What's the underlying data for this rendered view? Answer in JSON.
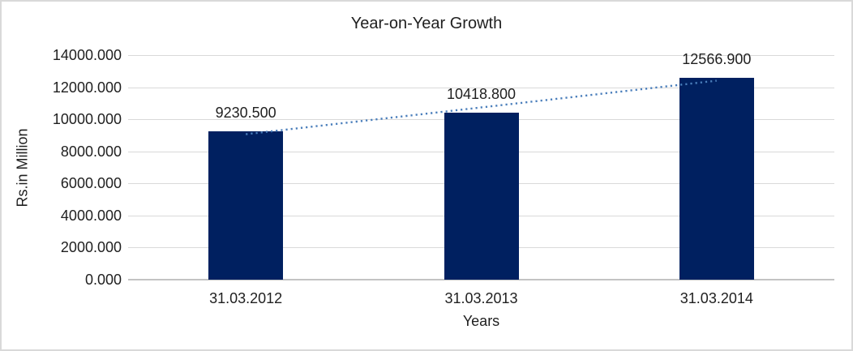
{
  "chart_data": {
    "type": "bar",
    "title": "Year-on-Year Growth",
    "categories": [
      "31.03.2012",
      "31.03.2013",
      "31.03.2014"
    ],
    "values": [
      9230.5,
      10418.8,
      12566.9
    ],
    "value_labels": [
      "9230.500",
      "10418.800",
      "12566.900"
    ],
    "xlabel": "Years",
    "ylabel": "Rs.in Million",
    "ylim": [
      0,
      14000
    ],
    "ytick_values": [
      0,
      2000,
      4000,
      6000,
      8000,
      10000,
      12000,
      14000
    ],
    "ytick_labels": [
      "0.000",
      "2000.000",
      "4000.000",
      "6000.000",
      "8000.000",
      "10000.000",
      "12000.000",
      "14000.000"
    ],
    "grid": true,
    "legend": false,
    "trendline": {
      "type": "linear",
      "style": "dotted"
    }
  },
  "colors": {
    "bar": "#002060",
    "trendline": "#4a7ebb",
    "gridline": "#d9d9d9",
    "axis_baseline": "#c3c3c3",
    "text": "#1f1f1f",
    "frame_border": "#d9d9d9"
  }
}
